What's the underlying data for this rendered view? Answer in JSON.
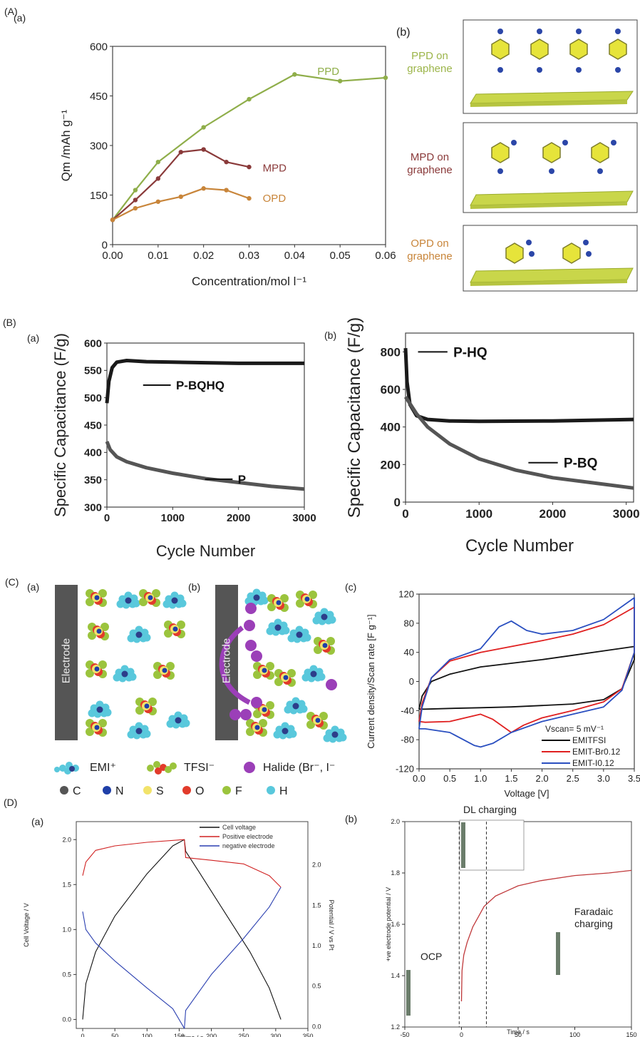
{
  "panels": {
    "A": "(A)",
    "A_a": "(a)",
    "A_b": "(b)",
    "B": "(B)",
    "B_a": "(a)",
    "B_b": "(b)",
    "C": "(C)",
    "C_a": "(a)",
    "C_b": "(b)",
    "C_c": "(c)",
    "D": "(D)",
    "D_a": "(a)",
    "D_b": "(b)"
  },
  "figureA_b": {
    "labels": [
      "PPD on graphene",
      "MPD on graphene",
      "OPD on graphene"
    ],
    "label_colors": [
      "#9cb54a",
      "#8a3a3a",
      "#c8853a"
    ]
  },
  "figureC_ab": {
    "electrode_label": "Electrode",
    "legend_ions": [
      "EMI⁺",
      "TFSI⁻",
      "Halide (Br⁻, I⁻"
    ],
    "legend_atoms": [
      "C",
      "N",
      "S",
      "O",
      "F",
      "H"
    ],
    "atom_colors": [
      "#555555",
      "#1f3fa8",
      "#f2e36a",
      "#e23b2b",
      "#9bc43d",
      "#59c8dc"
    ]
  },
  "figureD_b_annotations": {
    "dl_charging": "DL charging",
    "ocp": "OCP",
    "faradaic": "Faradaic charging"
  },
  "chart_data": [
    {
      "id": "A_a",
      "type": "line",
      "xlabel": "Concentration/mol l⁻¹",
      "ylabel": "Qm /mAh g⁻¹",
      "xlim": [
        0,
        0.06
      ],
      "ylim": [
        0,
        600
      ],
      "xticks": [
        "0.00",
        "0.01",
        "0.02",
        "0.03",
        "0.04",
        "0.05",
        "0.06"
      ],
      "yticks": [
        "0",
        "150",
        "300",
        "450",
        "600"
      ],
      "series": [
        {
          "name": "PPD",
          "color": "#8fae4a",
          "x": [
            0,
            0.005,
            0.01,
            0.02,
            0.03,
            0.04,
            0.05,
            0.06
          ],
          "y": [
            75,
            165,
            250,
            355,
            440,
            515,
            495,
            505
          ]
        },
        {
          "name": "MPD",
          "color": "#8a3a3a",
          "x": [
            0,
            0.005,
            0.01,
            0.015,
            0.02,
            0.025,
            0.03
          ],
          "y": [
            75,
            135,
            200,
            280,
            288,
            250,
            235
          ]
        },
        {
          "name": "OPD",
          "color": "#c8853a",
          "x": [
            0,
            0.005,
            0.01,
            0.015,
            0.02,
            0.025,
            0.03
          ],
          "y": [
            75,
            110,
            130,
            145,
            170,
            165,
            140
          ]
        }
      ]
    },
    {
      "id": "B_a",
      "type": "line",
      "xlabel": "Cycle Number",
      "ylabel": "Specific Capacitance (F/g)",
      "xlim": [
        0,
        3000
      ],
      "ylim": [
        300,
        600
      ],
      "xticks": [
        "0",
        "1000",
        "2000",
        "3000"
      ],
      "yticks": [
        "300",
        "350",
        "400",
        "450",
        "500",
        "550",
        "600"
      ],
      "series": [
        {
          "name": "P-BQHQ",
          "color": "#1a1a1a",
          "x": [
            0,
            30,
            80,
            150,
            300,
            600,
            1000,
            1500,
            2000,
            2500,
            3000
          ],
          "y": [
            490,
            530,
            555,
            565,
            568,
            566,
            565,
            564,
            563,
            563,
            563
          ]
        },
        {
          "name": "P",
          "color": "#555555",
          "x": [
            0,
            50,
            150,
            300,
            600,
            1000,
            1500,
            2000,
            2500,
            3000
          ],
          "y": [
            420,
            405,
            392,
            383,
            372,
            362,
            352,
            345,
            338,
            333
          ]
        }
      ]
    },
    {
      "id": "B_b",
      "type": "line",
      "xlabel": "Cycle Number",
      "ylabel": "Specific Capacitance (F/g)",
      "xlim": [
        0,
        3100
      ],
      "ylim": [
        0,
        900
      ],
      "xticks": [
        "0",
        "1000",
        "2000",
        "3000"
      ],
      "yticks": [
        "0",
        "200",
        "400",
        "600",
        "800"
      ],
      "series": [
        {
          "name": "P-HQ",
          "color": "#1a1a1a",
          "x": [
            0,
            20,
            60,
            150,
            300,
            600,
            1000,
            2000,
            3100
          ],
          "y": [
            820,
            640,
            520,
            460,
            440,
            432,
            430,
            432,
            440
          ]
        },
        {
          "name": "P-BQ",
          "color": "#555555",
          "x": [
            0,
            50,
            150,
            300,
            600,
            1000,
            1500,
            2000,
            2500,
            3100
          ],
          "y": [
            560,
            530,
            470,
            400,
            310,
            230,
            170,
            130,
            105,
            75
          ]
        }
      ]
    },
    {
      "id": "C_c",
      "type": "line",
      "xlabel": "Voltage [V]",
      "ylabel": "Current density/Scan rate [F g⁻¹]",
      "annotation": "Vscan= 5 mV⁻¹",
      "xlim": [
        0,
        3.5
      ],
      "ylim": [
        -120,
        120
      ],
      "xticks": [
        "0.0",
        "0.5",
        "1.0",
        "1.5",
        "2.0",
        "2.5",
        "3.0",
        "3.5"
      ],
      "yticks": [
        "-120",
        "-80",
        "-40",
        "0",
        "40",
        "80",
        "120"
      ],
      "legend": "bottom-right",
      "series": [
        {
          "name": "EMITFSI",
          "color": "#111111",
          "x": [
            0,
            0.05,
            0.2,
            0.5,
            1.0,
            1.5,
            2.0,
            2.5,
            3.0,
            3.5,
            3.5,
            3.3,
            3.0,
            2.5,
            2.0,
            1.5,
            1.0,
            0.5,
            0.1,
            0
          ],
          "y": [
            -38,
            -20,
            0,
            10,
            20,
            25,
            30,
            36,
            42,
            48,
            30,
            -10,
            -25,
            -31,
            -33,
            -35,
            -36,
            -37,
            -38,
            -38
          ]
        },
        {
          "name": "EMIT-Br0.12",
          "color": "#e02020",
          "x": [
            0,
            0.05,
            0.2,
            0.5,
            1.0,
            1.5,
            2.0,
            2.5,
            3.0,
            3.5,
            3.5,
            3.3,
            3.0,
            2.5,
            2.0,
            1.7,
            1.5,
            1.2,
            1.0,
            0.5,
            0.1,
            0
          ],
          "y": [
            -55,
            -30,
            5,
            28,
            40,
            48,
            56,
            65,
            78,
            102,
            40,
            -10,
            -28,
            -40,
            -50,
            -60,
            -70,
            -52,
            -45,
            -55,
            -56,
            -55
          ]
        },
        {
          "name": "EMIT-I0.12",
          "color": "#2a4fc0",
          "x": [
            0,
            0.05,
            0.2,
            0.5,
            1.0,
            1.3,
            1.5,
            1.75,
            2.0,
            2.5,
            3.0,
            3.5,
            3.5,
            3.3,
            3.0,
            2.5,
            2.0,
            1.5,
            1.2,
            1.0,
            0.9,
            0.5,
            0.1,
            0
          ],
          "y": [
            -65,
            -35,
            5,
            30,
            45,
            75,
            83,
            70,
            65,
            70,
            85,
            115,
            40,
            -12,
            -35,
            -45,
            -55,
            -70,
            -85,
            -90,
            -88,
            -70,
            -65,
            -65
          ]
        }
      ]
    },
    {
      "id": "D_a",
      "type": "line",
      "xlabel": "Time / s",
      "ylabel": "Cell Voltage / V",
      "ylabel_right": "Potential / V vs Pt",
      "xlim": [
        -10,
        350
      ],
      "ylim": [
        -0.1,
        2.2
      ],
      "xticks": [
        "0",
        "50",
        "100",
        "150",
        "200",
        "250",
        "300",
        "350"
      ],
      "yticks": [
        "0.0",
        "0.5",
        "1.0",
        "1.5",
        "2.0"
      ],
      "yticks_right": [
        "0.0",
        "0.5",
        "1.0",
        "1.5",
        "2.0"
      ],
      "legend": "top-right",
      "series": [
        {
          "name": "Cell voltage",
          "color": "#111111",
          "x": [
            0,
            5,
            20,
            50,
            100,
            140,
            158,
            160,
            180,
            220,
            260,
            290,
            308
          ],
          "y": [
            0.0,
            0.4,
            0.75,
            1.15,
            1.62,
            1.93,
            2.0,
            1.87,
            1.65,
            1.2,
            0.75,
            0.35,
            0.0
          ]
        },
        {
          "name": "Positive electrode",
          "color": "#d02020",
          "x": [
            0,
            5,
            20,
            50,
            100,
            158,
            160,
            200,
            250,
            290,
            308
          ],
          "y": [
            1.6,
            1.75,
            1.88,
            1.93,
            1.97,
            2.0,
            1.8,
            1.77,
            1.73,
            1.6,
            1.47
          ]
        },
        {
          "name": "negative electrode",
          "color": "#2a3fb0",
          "x": [
            0,
            5,
            20,
            50,
            100,
            140,
            158,
            160,
            200,
            250,
            290,
            308
          ],
          "y": [
            1.2,
            1.0,
            0.85,
            0.65,
            0.35,
            0.12,
            -0.1,
            0.1,
            0.5,
            0.9,
            1.25,
            1.47
          ]
        }
      ]
    },
    {
      "id": "D_b",
      "type": "line",
      "xlabel": "Time / s",
      "ylabel": "+ve electrode potential / V",
      "xlim": [
        -50,
        150
      ],
      "ylim": [
        1.2,
        2.0
      ],
      "xticks": [
        "-50",
        "0",
        "50",
        "100",
        "150"
      ],
      "yticks": [
        "1.2",
        "1.4",
        "1.6",
        "1.8",
        "2.0"
      ],
      "series": [
        {
          "name": "",
          "color": "#c0393b",
          "x": [
            0,
            0.5,
            2,
            5,
            10,
            15,
            20,
            30,
            40,
            50,
            70,
            100,
            130,
            150
          ],
          "y": [
            1.3,
            1.42,
            1.48,
            1.53,
            1.59,
            1.63,
            1.67,
            1.71,
            1.73,
            1.75,
            1.77,
            1.79,
            1.8,
            1.81
          ]
        }
      ],
      "dashed_x": [
        -2,
        22
      ]
    }
  ]
}
